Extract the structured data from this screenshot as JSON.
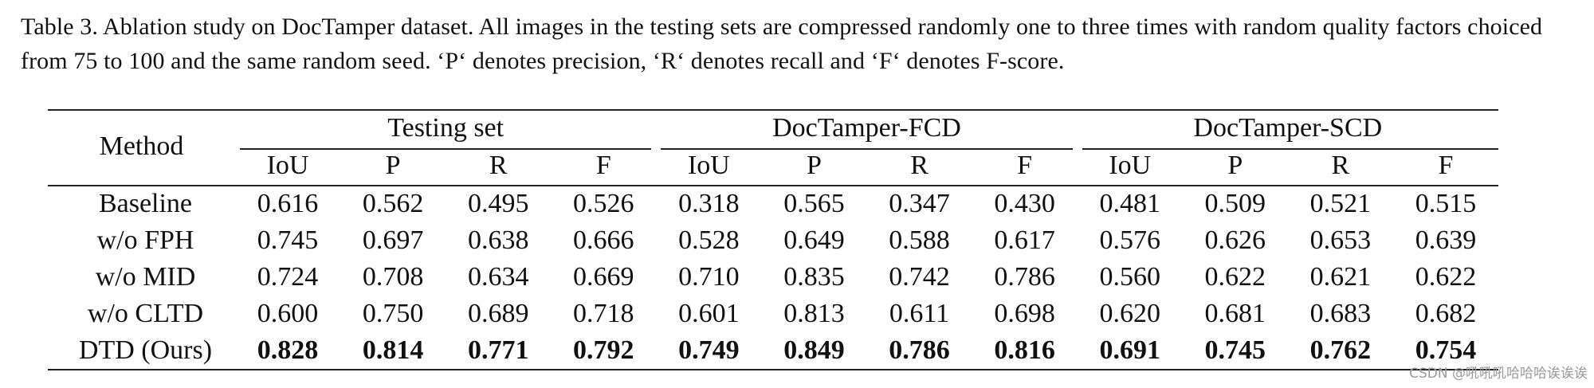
{
  "caption": "Table 3.  Ablation study on DocTamper dataset.  All images in the testing sets are compressed randomly one to three times with random quality factors choiced from 75 to 100 and the same random seed.  ‘P‘ denotes precision, ‘R‘ denotes recall and ‘F‘ denotes F-score.",
  "table": {
    "method_header": "Method",
    "groups": [
      "Testing set",
      "DocTamper-FCD",
      "DocTamper-SCD"
    ],
    "subcols": [
      "IoU",
      "P",
      "R",
      "F",
      "IoU",
      "P",
      "R",
      "F",
      "IoU",
      "P",
      "R",
      "F"
    ],
    "rows": [
      {
        "method": "Baseline",
        "values": [
          "0.616",
          "0.562",
          "0.495",
          "0.526",
          "0.318",
          "0.565",
          "0.347",
          "0.430",
          "0.481",
          "0.509",
          "0.521",
          "0.515"
        ],
        "bold": false
      },
      {
        "method": "w/o FPH",
        "values": [
          "0.745",
          "0.697",
          "0.638",
          "0.666",
          "0.528",
          "0.649",
          "0.588",
          "0.617",
          "0.576",
          "0.626",
          "0.653",
          "0.639"
        ],
        "bold": false
      },
      {
        "method": "w/o MID",
        "values": [
          "0.724",
          "0.708",
          "0.634",
          "0.669",
          "0.710",
          "0.835",
          "0.742",
          "0.786",
          "0.560",
          "0.622",
          "0.621",
          "0.622"
        ],
        "bold": false
      },
      {
        "method": "w/o CLTD",
        "values": [
          "0.600",
          "0.750",
          "0.689",
          "0.718",
          "0.601",
          "0.813",
          "0.611",
          "0.698",
          "0.620",
          "0.681",
          "0.683",
          "0.682"
        ],
        "bold": false
      },
      {
        "method": "DTD (Ours)",
        "values": [
          "0.828",
          "0.814",
          "0.771",
          "0.792",
          "0.749",
          "0.849",
          "0.786",
          "0.816",
          "0.691",
          "0.745",
          "0.762",
          "0.754"
        ],
        "bold": true
      }
    ]
  },
  "watermark": "CSDN @吼吼吼哈哈哈诶诶诶"
}
